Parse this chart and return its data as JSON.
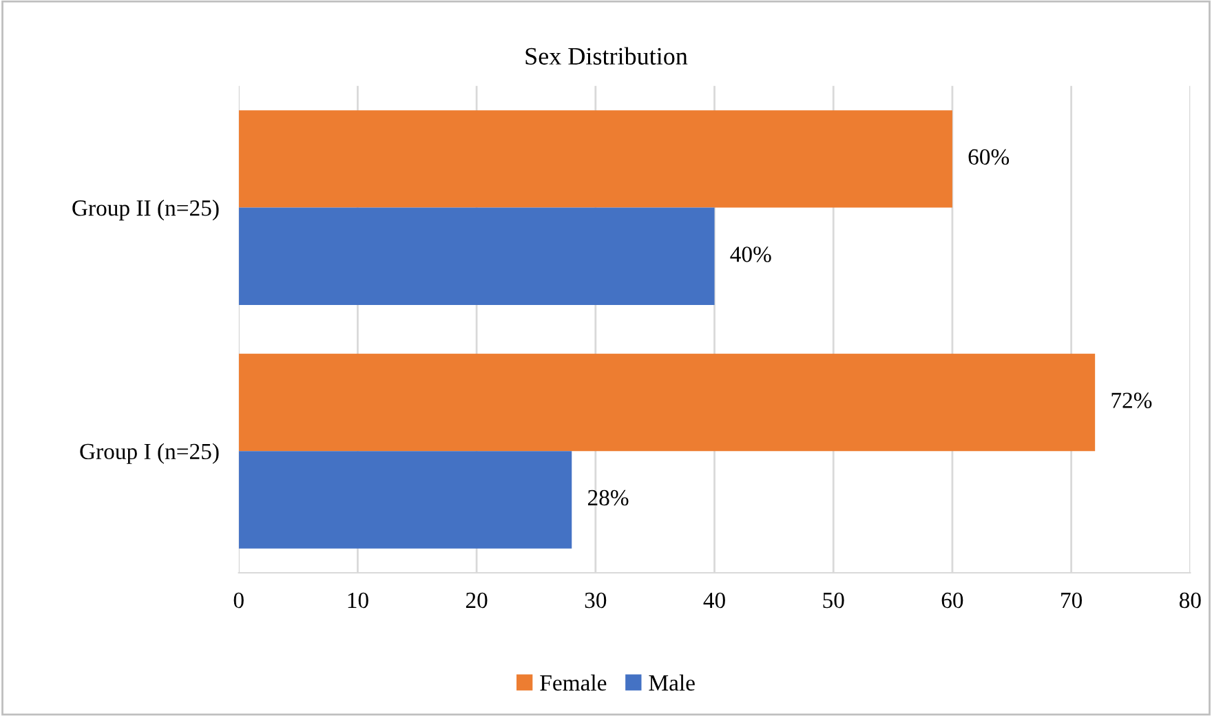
{
  "chart_data": {
    "type": "bar",
    "orientation": "horizontal",
    "title": "Sex Distribution",
    "categories": [
      "Group II (n=25)",
      "Group I (n=25)"
    ],
    "series": [
      {
        "name": "Female",
        "color": "#ed7d31",
        "values": [
          60,
          72
        ],
        "value_labels": [
          "60%",
          "72%"
        ]
      },
      {
        "name": "Male",
        "color": "#4472c4",
        "values": [
          40,
          28
        ],
        "value_labels": [
          "40%",
          "28%"
        ]
      }
    ],
    "xlim": [
      0,
      80
    ],
    "xticks": [
      0,
      10,
      20,
      30,
      40,
      50,
      60,
      70,
      80
    ],
    "grid": "x",
    "legend": "bottom"
  }
}
